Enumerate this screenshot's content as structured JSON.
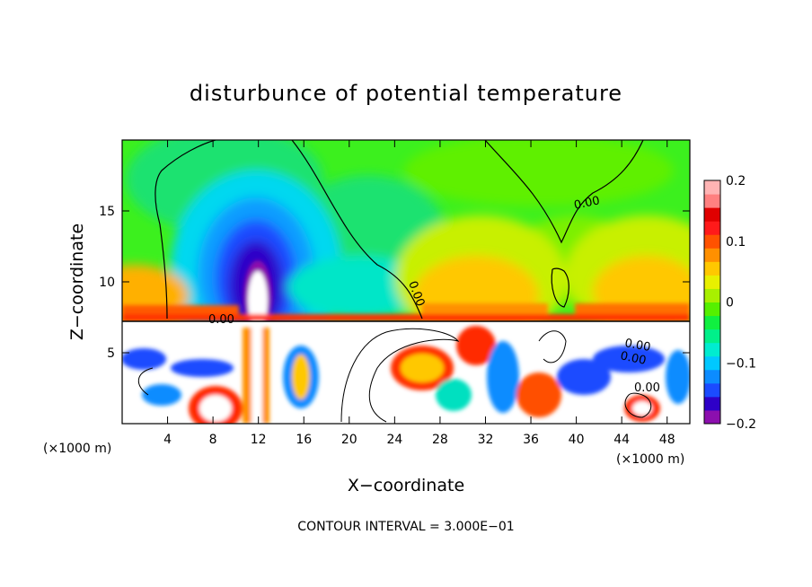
{
  "chart_data": {
    "type": "heatmap",
    "title": "disturbunce of potential temperature",
    "xlabel": "X−coordinate",
    "ylabel": "Z−coordinate",
    "x_unit": "(×1000 m)",
    "y_unit": "(×1000 m)",
    "xlim": [
      0,
      50
    ],
    "ylim": [
      0,
      20
    ],
    "x_ticks": [
      "4",
      "8",
      "12",
      "16",
      "20",
      "24",
      "28",
      "32",
      "36",
      "40",
      "44",
      "48"
    ],
    "x_tick_values": [
      4,
      8,
      12,
      16,
      20,
      24,
      28,
      32,
      36,
      40,
      44,
      48
    ],
    "y_ticks": [
      "5",
      "10",
      "15"
    ],
    "y_tick_values": [
      5,
      10,
      15
    ],
    "colorbar": {
      "range": [
        -0.2,
        0.2
      ],
      "labels": [
        "0.2",
        "0.1",
        "0",
        "−0.1",
        "−0.2"
      ],
      "label_values": [
        0.2,
        0.1,
        0,
        -0.1,
        -0.2
      ],
      "colors": [
        "#8c0fae",
        "#2e00c8",
        "#1b4bff",
        "#0c8cff",
        "#00c8ff",
        "#00ecd0",
        "#00f08a",
        "#10f040",
        "#55f000",
        "#a8f000",
        "#e8f000",
        "#ffc800",
        "#ff9000",
        "#ff5200",
        "#ff1a1a",
        "#e00000",
        "#ff8080",
        "#ffb4b4"
      ]
    },
    "contour_labels": [
      "0.00",
      "0.00",
      "0.00",
      "0.00",
      "0.00",
      "0.00"
    ],
    "contour_interval": "CONTOUR INTERVAL = 3.000E−01",
    "grid": false
  }
}
